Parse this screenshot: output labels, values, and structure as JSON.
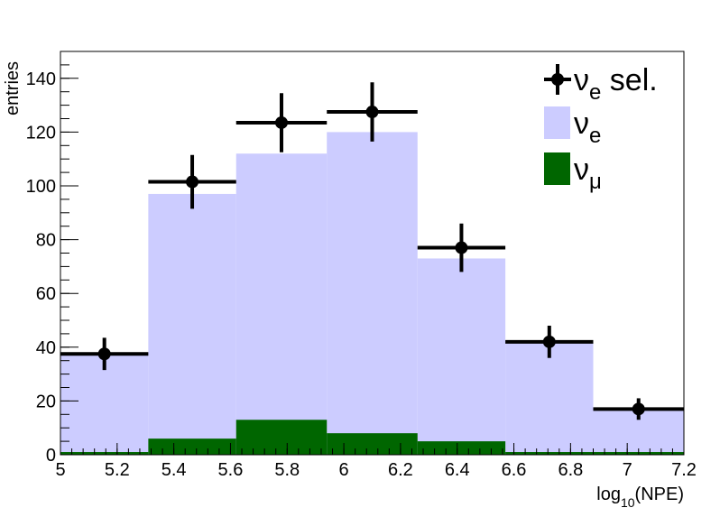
{
  "chart_data": {
    "type": "bar",
    "xlabel": "log",
    "xlabel_sub": "10",
    "xlabel_suffix": "(NPE)",
    "ylabel": "entries",
    "xlim": [
      5.0,
      7.2
    ],
    "ylim": [
      0,
      150
    ],
    "x_ticks": [
      "5",
      "5.2",
      "5.4",
      "5.6",
      "5.8",
      "6",
      "6.2",
      "6.4",
      "6.6",
      "6.8",
      "7",
      "7.2"
    ],
    "y_ticks": [
      "0",
      "20",
      "40",
      "60",
      "80",
      "100",
      "120",
      "140"
    ],
    "bin_edges": [
      5.0,
      5.31,
      5.62,
      5.94,
      6.26,
      6.57,
      6.88,
      7.2
    ],
    "series": [
      {
        "name": "ν_e",
        "style": "filled-histogram",
        "color": "#ccccff",
        "values": [
          38,
          97,
          112,
          120,
          73,
          42,
          17
        ]
      },
      {
        "name": "ν_μ",
        "style": "filled-histogram",
        "color": "#006600",
        "values": [
          1,
          6,
          13,
          8,
          5,
          1,
          1
        ]
      },
      {
        "name": "ν_e sel.",
        "style": "points-with-errors",
        "color": "#000000",
        "values": [
          37.5,
          101.5,
          123.5,
          127.5,
          77,
          42,
          17
        ],
        "err_low": [
          6,
          10,
          11,
          11,
          9,
          6,
          4
        ],
        "err_high": [
          6,
          10,
          11,
          11,
          9,
          6,
          4
        ]
      }
    ],
    "legend": {
      "position": "top-right",
      "entries": [
        {
          "symbol": "ν",
          "sub": "e",
          "suffix": " sel.",
          "marker": "point"
        },
        {
          "symbol": "ν",
          "sub": "e",
          "suffix": "",
          "marker": "box",
          "color": "#ccccff"
        },
        {
          "symbol": "ν",
          "sub": "μ",
          "suffix": "",
          "marker": "box",
          "color": "#006600"
        }
      ]
    }
  }
}
